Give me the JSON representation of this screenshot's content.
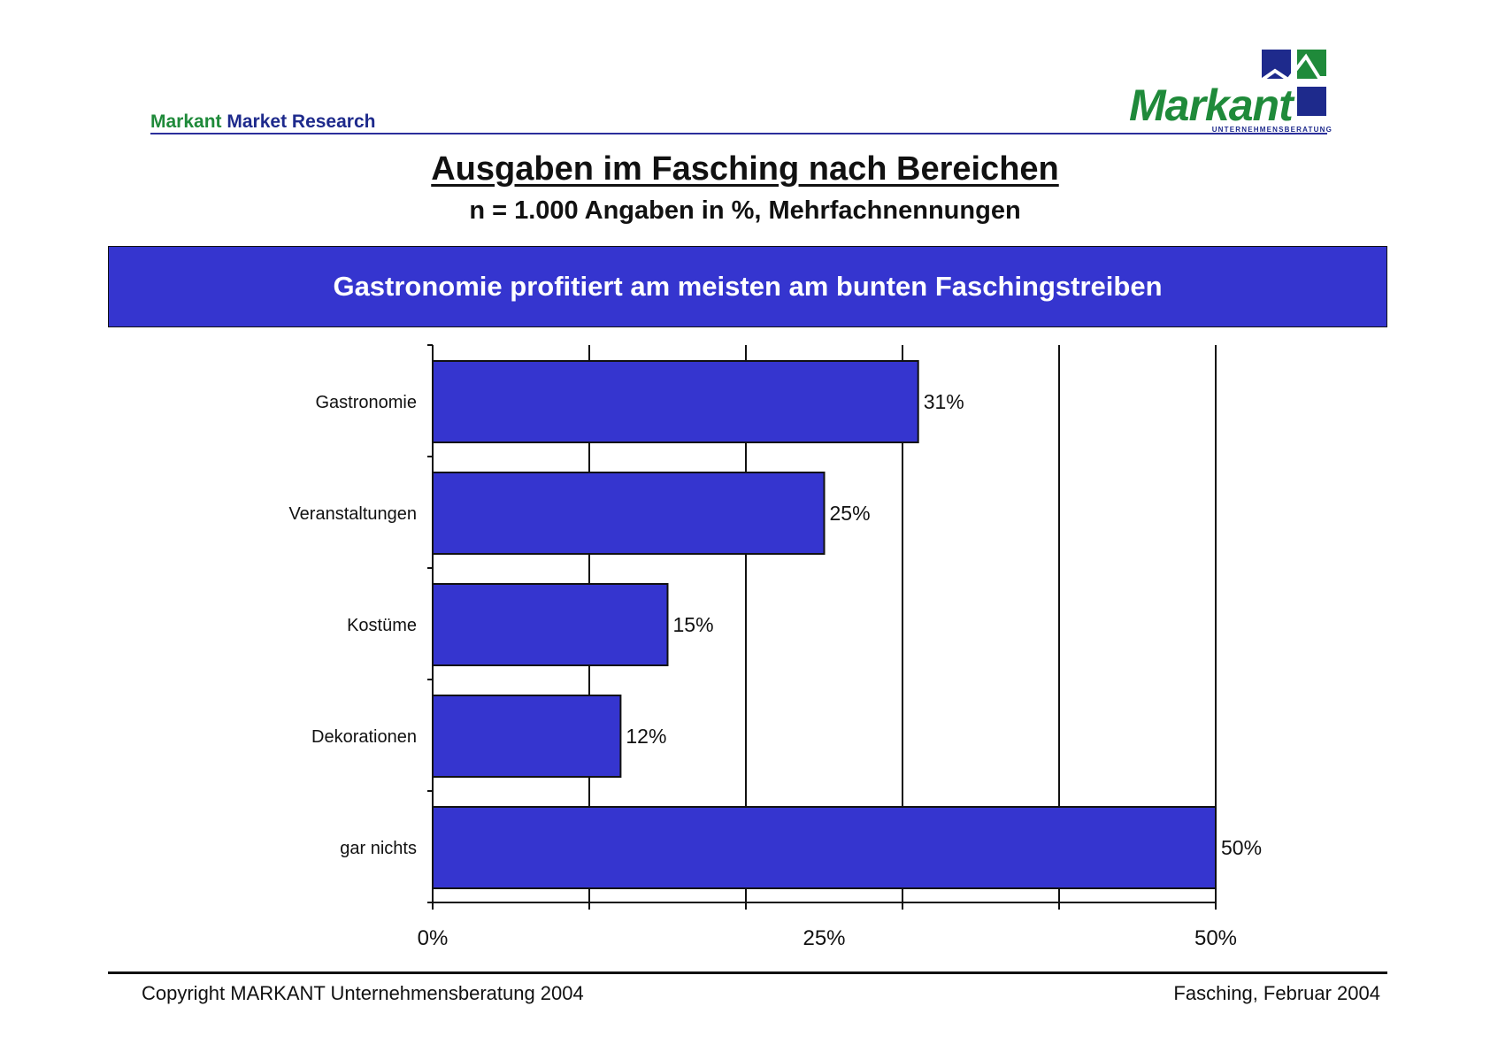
{
  "header": {
    "brand_left_part1": "Markant",
    "brand_left_part2": "Market Research",
    "logo_word": "Markant",
    "logo_subtitle": "UNTERNEHMENSBERATUNG"
  },
  "title": "Ausgaben im Fasching nach Bereichen",
  "subtitle": "n = 1.000 Angaben in %, Mehrfachnennungen",
  "banner": "Gastronomie profitiert am meisten am bunten Faschingstreiben",
  "chart_data": {
    "type": "bar",
    "orientation": "horizontal",
    "categories": [
      "Gastronomie",
      "Veranstaltungen",
      "Kostüme",
      "Dekorationen",
      "gar nichts"
    ],
    "values": [
      31,
      25,
      15,
      12,
      50
    ],
    "data_labels": [
      "31%",
      "25%",
      "15%",
      "12%",
      "50%"
    ],
    "xlim": [
      0,
      50
    ],
    "x_ticks": [
      0,
      25,
      50
    ],
    "x_tick_labels": [
      "0%",
      "25%",
      "50%"
    ],
    "gridlines": [
      10,
      20,
      30,
      40,
      50
    ],
    "grid": true,
    "bar_color": "#3535cf",
    "title": "",
    "xlabel": "",
    "ylabel": ""
  },
  "footer": {
    "copyright": "Copyright MARKANT Unternehmensberatung 2004",
    "date": "Fasching,  Februar 2004"
  },
  "colors": {
    "accent": "#3535cf",
    "brand_green": "#1f8a3a",
    "brand_blue": "#1e2a8c"
  }
}
